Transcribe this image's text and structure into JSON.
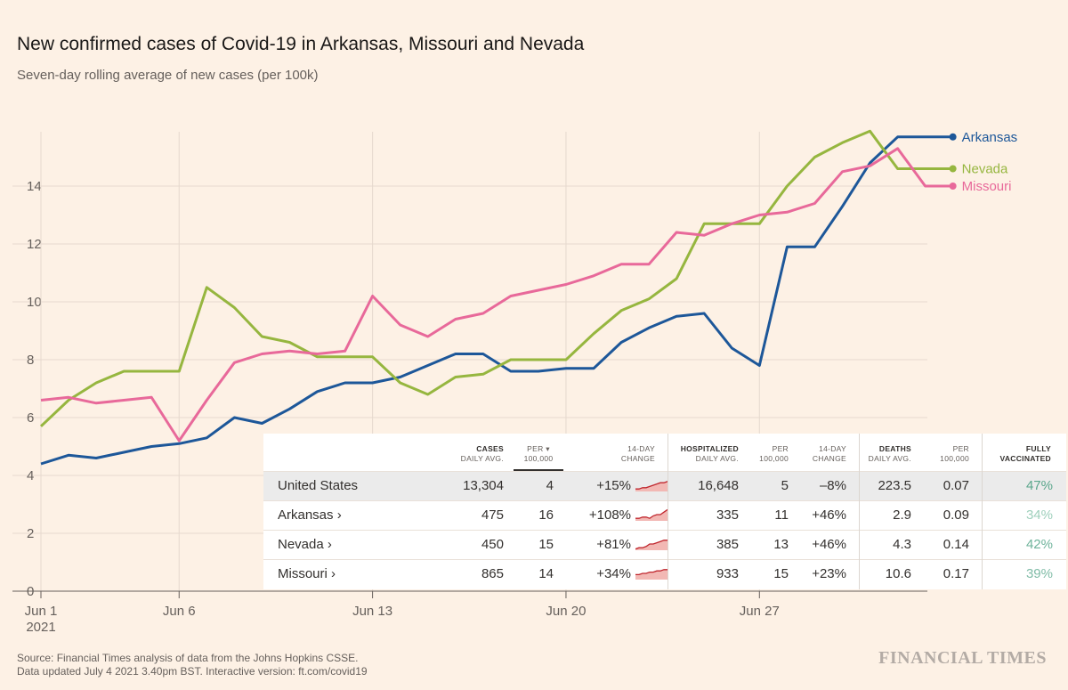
{
  "title": "New confirmed cases of Covid-19 in Arkansas, Missouri and Nevada",
  "subtitle": "Seven-day rolling average of new cases (per 100k)",
  "source_line1": "Source: Financial Times analysis of data from the Johns Hopkins CSSE.",
  "source_line2": "Data updated July 4 2021 3.40pm BST. Interactive version: ft.com/covid19",
  "brand": "FINANCIAL TIMES",
  "colors": {
    "background": "#fdf1e5",
    "arkansas": "#1d5799",
    "nevada": "#96b63f",
    "missouri": "#e8699a",
    "grid": "#e6d9ce",
    "vaccinated": "#5aa68b"
  },
  "chart_data": {
    "type": "line",
    "title": "New confirmed cases of Covid-19 in Arkansas, Missouri and Nevada",
    "subtitle": "Seven-day rolling average of new cases (per 100k)",
    "xlabel": "",
    "ylabel": "",
    "ylim": [
      0,
      16
    ],
    "yticks": [
      0,
      2,
      4,
      6,
      8,
      10,
      12,
      14
    ],
    "x_ticks": [
      {
        "label": "Jun 1",
        "sub": "2021",
        "day": 1
      },
      {
        "label": "Jun 6",
        "sub": "",
        "day": 6
      },
      {
        "label": "Jun 13",
        "sub": "",
        "day": 13
      },
      {
        "label": "Jun 20",
        "sub": "",
        "day": 20
      },
      {
        "label": "Jun 27",
        "sub": "",
        "day": 27
      }
    ],
    "x_days": [
      1,
      2,
      3,
      4,
      5,
      6,
      7,
      8,
      9,
      10,
      11,
      12,
      13,
      14,
      15,
      16,
      17,
      18,
      19,
      20,
      21,
      22,
      23,
      24,
      25,
      26,
      27,
      28,
      29,
      30,
      31,
      32,
      33,
      34,
      35
    ],
    "grid": true,
    "series": [
      {
        "name": "Arkansas",
        "color": "#1d5799",
        "values": [
          4.4,
          4.7,
          4.6,
          4.8,
          5.0,
          5.1,
          5.3,
          6.0,
          5.8,
          6.3,
          6.9,
          7.2,
          7.2,
          7.4,
          7.8,
          8.2,
          8.2,
          7.6,
          7.6,
          7.7,
          7.7,
          8.6,
          9.1,
          9.5,
          9.6,
          8.4,
          7.8,
          11.9,
          11.9,
          13.3,
          14.8,
          15.7,
          15.7,
          15.7,
          null
        ]
      },
      {
        "name": "Nevada",
        "color": "#96b63f",
        "values": [
          5.7,
          6.6,
          7.2,
          7.6,
          7.6,
          7.6,
          10.5,
          9.8,
          8.8,
          8.6,
          8.1,
          8.1,
          8.1,
          7.2,
          6.8,
          7.4,
          7.5,
          8.0,
          8.0,
          8.0,
          8.9,
          9.7,
          10.1,
          10.8,
          12.7,
          12.7,
          12.7,
          14.0,
          15.0,
          15.5,
          15.9,
          14.6,
          14.6,
          14.6,
          null
        ]
      },
      {
        "name": "Missouri",
        "color": "#e8699a",
        "values": [
          6.6,
          6.7,
          6.5,
          6.6,
          6.7,
          5.2,
          6.6,
          7.9,
          8.2,
          8.3,
          8.2,
          8.3,
          10.2,
          9.2,
          8.8,
          9.4,
          9.6,
          10.2,
          10.4,
          10.6,
          10.9,
          11.3,
          11.3,
          12.4,
          12.3,
          12.7,
          13.0,
          13.1,
          13.4,
          14.5,
          14.7,
          15.3,
          14.0,
          14.0,
          null
        ]
      }
    ]
  },
  "table": {
    "headers": {
      "cases_title": "CASES",
      "cases_sub": "DAILY AVG.",
      "per1_title": "PER",
      "per1_sub": "100,000",
      "per1_arrow": "▾",
      "ch1_title": "14-DAY",
      "ch1_sub": "CHANGE",
      "hosp_title": "HOSPITALIZED",
      "hosp_sub": "DAILY AVG.",
      "per2_title": "PER",
      "per2_sub": "100,000",
      "ch2_title": "14-DAY",
      "ch2_sub": "CHANGE",
      "deaths_title": "DEATHS",
      "deaths_sub": "DAILY AVG.",
      "per3_title": "PER",
      "per3_sub": "100,000",
      "vax_title": "FULLY",
      "vax_sub": "VACCINATED"
    },
    "rows": [
      {
        "name": "United States",
        "cases": "13,304",
        "cases_per": "4",
        "cases_change": "+15%",
        "hosp": "16,648",
        "hosp_per": "5",
        "hosp_change": "–8%",
        "deaths": "223.5",
        "deaths_per": "0.07",
        "vaccinated": "47%",
        "vax_color": "#5aa68b",
        "spark": [
          2,
          2,
          3,
          3,
          4,
          5,
          6,
          7,
          7,
          8
        ]
      },
      {
        "name": "Arkansas ›",
        "cases": "475",
        "cases_per": "16",
        "cases_change": "+108%",
        "hosp": "335",
        "hosp_per": "11",
        "hosp_change": "+46%",
        "deaths": "2.9",
        "deaths_per": "0.09",
        "vaccinated": "34%",
        "vax_color": "#9fd0bc",
        "spark": [
          2,
          2,
          3,
          3,
          2,
          4,
          5,
          5,
          7,
          9
        ]
      },
      {
        "name": "Nevada ›",
        "cases": "450",
        "cases_per": "15",
        "cases_change": "+81%",
        "hosp": "385",
        "hosp_per": "13",
        "hosp_change": "+46%",
        "deaths": "4.3",
        "deaths_per": "0.14",
        "vaccinated": "42%",
        "vax_color": "#6fb39b",
        "spark": [
          1,
          2,
          2,
          3,
          5,
          5,
          6,
          7,
          8,
          8
        ]
      },
      {
        "name": "Missouri ›",
        "cases": "865",
        "cases_per": "14",
        "cases_change": "+34%",
        "hosp": "933",
        "hosp_per": "15",
        "hosp_change": "+23%",
        "deaths": "10.6",
        "deaths_per": "0.17",
        "vaccinated": "39%",
        "vax_color": "#80bca7",
        "spark": [
          4,
          4,
          5,
          5,
          6,
          6,
          7,
          7,
          8,
          8
        ]
      }
    ]
  }
}
